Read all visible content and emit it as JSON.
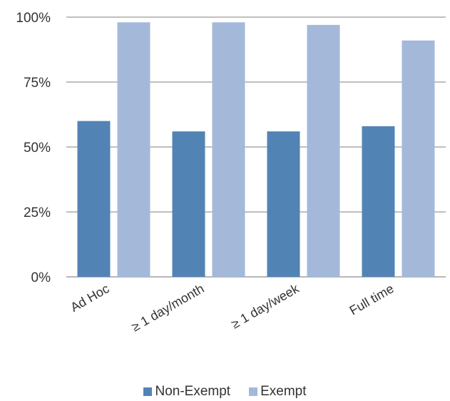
{
  "chart_data": {
    "type": "bar",
    "title": "",
    "xlabel": "",
    "ylabel": "",
    "categories": [
      "Ad Hoc",
      "≥ 1 day/month",
      "≥ 1 day/week",
      "Full time"
    ],
    "series": [
      {
        "name": "Non-Exempt",
        "values": [
          60,
          56,
          56,
          58
        ],
        "color": "#5283b5"
      },
      {
        "name": "Exempt",
        "values": [
          98,
          98,
          97,
          91
        ],
        "color": "#a4b8da"
      }
    ],
    "ylim": [
      0,
      100
    ],
    "yticks": [
      0,
      25,
      50,
      75,
      100
    ],
    "ytick_labels": [
      "0%",
      "25%",
      "50%",
      "75%",
      "100%"
    ],
    "grid": true,
    "legend_position": "bottom"
  }
}
